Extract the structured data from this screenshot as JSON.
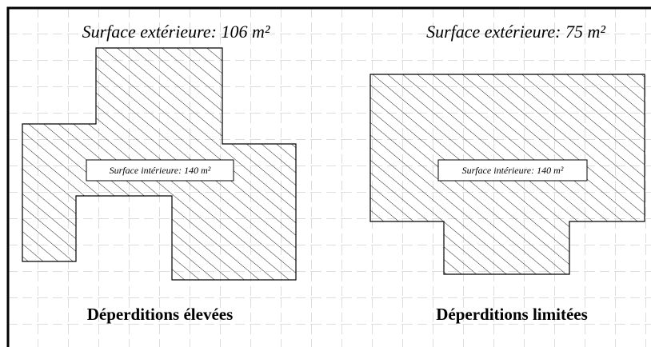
{
  "panels": [
    {
      "title": "Surface extérieure: 106 m²",
      "inner_label": "Surface intérieure: 140 m²",
      "caption": "Déperditions élevées"
    },
    {
      "title": "Surface extérieure: 75 m²",
      "inner_label": "Surface intérieure: 140 m²",
      "caption": "Déperditions limitées"
    }
  ]
}
